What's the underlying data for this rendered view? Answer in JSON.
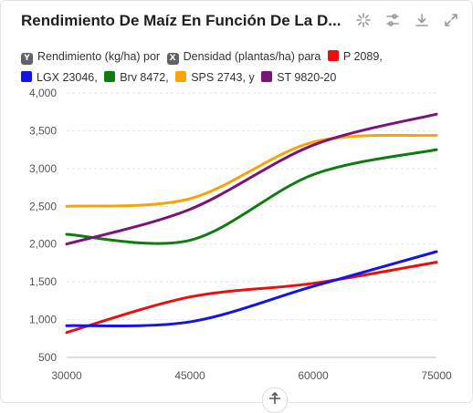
{
  "title": "Rendimiento De Maíz En Función De La D...",
  "toolbar": {
    "icons": [
      "sparkle-icon",
      "sliders-icon",
      "download-icon",
      "expand-icon"
    ]
  },
  "legend": {
    "y_chip": "Y",
    "y_text": "Rendimiento (kg/ha) por",
    "x_chip": "X",
    "x_text": "Densidad (plantas/ha) para",
    "entries": [
      {
        "label": "P 2089,",
        "color": "#e8100f"
      },
      {
        "label": "LGX 23046,",
        "color": "#1414e6"
      },
      {
        "label": "Brv 8472,",
        "color": "#117a10"
      },
      {
        "label": "SPS 2743, y",
        "color": "#f5a50b"
      },
      {
        "label": "ST 9820-20",
        "color": "#7a137a"
      }
    ]
  },
  "chart_data": {
    "type": "line",
    "xlabel": "Densidad (plantas/ha)",
    "ylabel": "Rendimiento (kg/ha)",
    "x": [
      30000,
      45000,
      60000,
      75000
    ],
    "xticks": [
      "30000",
      "45000",
      "60000",
      "75000"
    ],
    "ylim": [
      500,
      4000
    ],
    "yticks": [
      "500",
      "1,000",
      "1,500",
      "2,000",
      "2,500",
      "3,000",
      "3,500",
      "4,000"
    ],
    "grid": true,
    "series": [
      {
        "name": "P 2089",
        "color": "#e8100f",
        "values": [
          830,
          1300,
          1480,
          1760
        ]
      },
      {
        "name": "LGX 23046",
        "color": "#1414e6",
        "values": [
          920,
          970,
          1440,
          1900
        ]
      },
      {
        "name": "Brv 8472",
        "color": "#117a10",
        "values": [
          2130,
          2050,
          2920,
          3250
        ]
      },
      {
        "name": "SPS 2743",
        "color": "#f5a50b",
        "values": [
          2500,
          2600,
          3350,
          3440
        ]
      },
      {
        "name": "ST 9820-20",
        "color": "#7a137a",
        "values": [
          2000,
          2460,
          3310,
          3720
        ]
      }
    ]
  }
}
